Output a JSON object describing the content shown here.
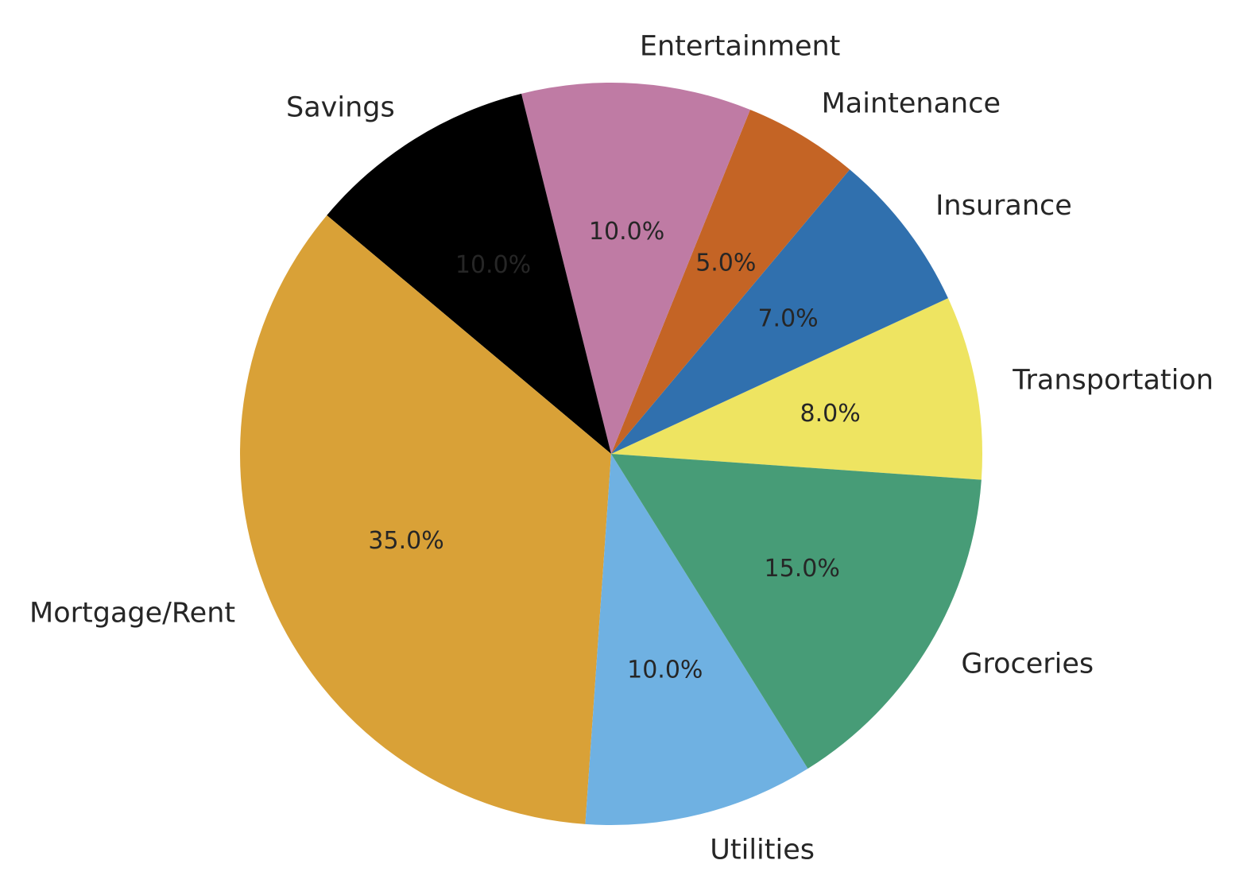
{
  "chart_data": {
    "type": "pie",
    "title": "",
    "slices": [
      {
        "label": "Transportation",
        "value": 8.0,
        "pct_label": "8.0%",
        "color": "#EEE461"
      },
      {
        "label": "Insurance",
        "value": 7.0,
        "pct_label": "7.0%",
        "color": "#3070AE"
      },
      {
        "label": "Maintenance",
        "value": 5.0,
        "pct_label": "5.0%",
        "color": "#C46425"
      },
      {
        "label": "Entertainment",
        "value": 10.0,
        "pct_label": "10.0%",
        "color": "#BF7BA4"
      },
      {
        "label": "Savings",
        "value": 10.0,
        "pct_label": "10.0%",
        "color": "#000000"
      },
      {
        "label": "Mortgage/Rent",
        "value": 35.0,
        "pct_label": "35.0%",
        "color": "#D9A137"
      },
      {
        "label": "Utilities",
        "value": 10.0,
        "pct_label": "10.0%",
        "color": "#6FB1E2"
      },
      {
        "label": "Groceries",
        "value": 15.0,
        "pct_label": "15.0%",
        "color": "#479C77"
      }
    ],
    "start_angle_deg": -4,
    "direction": "counterclockwise",
    "legend": "none"
  }
}
